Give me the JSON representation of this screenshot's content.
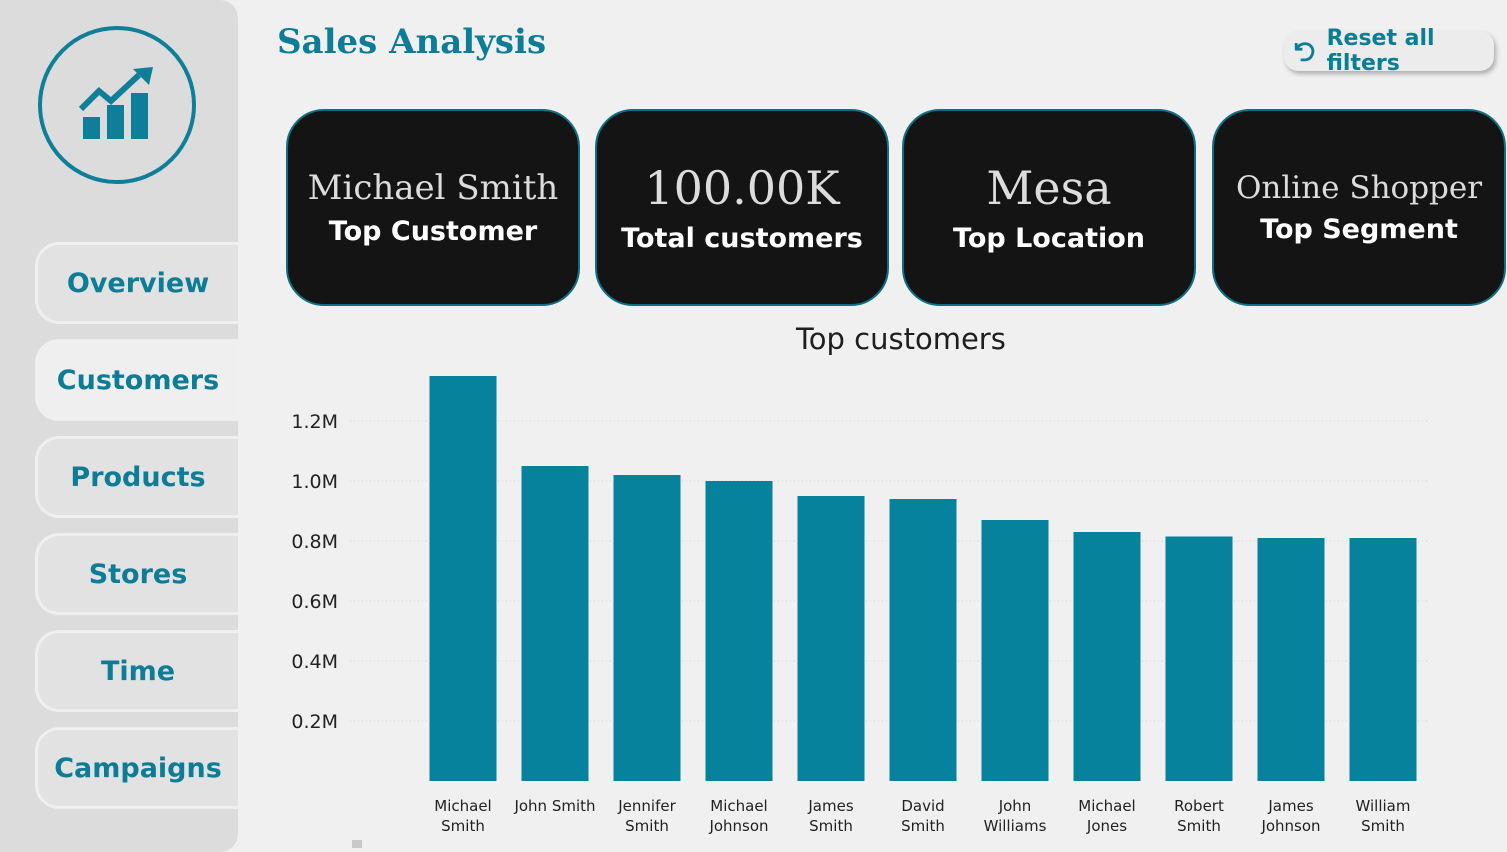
{
  "header": {
    "title": "Sales Analysis",
    "reset_label": "Reset all filters"
  },
  "sidebar": {
    "items": [
      {
        "label": "Overview",
        "active": false
      },
      {
        "label": "Customers",
        "active": true
      },
      {
        "label": "Products",
        "active": false
      },
      {
        "label": "Stores",
        "active": false
      },
      {
        "label": "Time",
        "active": false
      },
      {
        "label": "Campaigns",
        "active": false
      }
    ]
  },
  "cards": [
    {
      "value": "Michael Smith",
      "label": "Top Customer"
    },
    {
      "value": "100.00K",
      "label": "Total customers"
    },
    {
      "value": "Mesa",
      "label": "Top Location"
    },
    {
      "value": "Online Shopper",
      "label": "Top Segment"
    }
  ],
  "colors": {
    "accent": "#0f7f99",
    "bar": "#07829c",
    "card_bg": "#141414",
    "page_bg": "#f0f0f0"
  },
  "chart_data": {
    "type": "bar",
    "title": "Top customers",
    "categories": [
      "Michael Smith",
      "John Smith",
      "Jennifer Smith",
      "Michael Johnson",
      "James Smith",
      "David Smith",
      "John Williams",
      "Michael Jones",
      "Robert Smith",
      "James Johnson",
      "William Smith"
    ],
    "values": [
      1.35,
      1.05,
      1.02,
      1.0,
      0.95,
      0.94,
      0.87,
      0.83,
      0.815,
      0.81,
      0.81
    ],
    "unit": "M",
    "ylim": [
      0,
      1.35
    ],
    "yticks": [
      "0.2M",
      "0.4M",
      "0.6M",
      "0.8M",
      "1.0M",
      "1.2M"
    ],
    "grid": true
  }
}
